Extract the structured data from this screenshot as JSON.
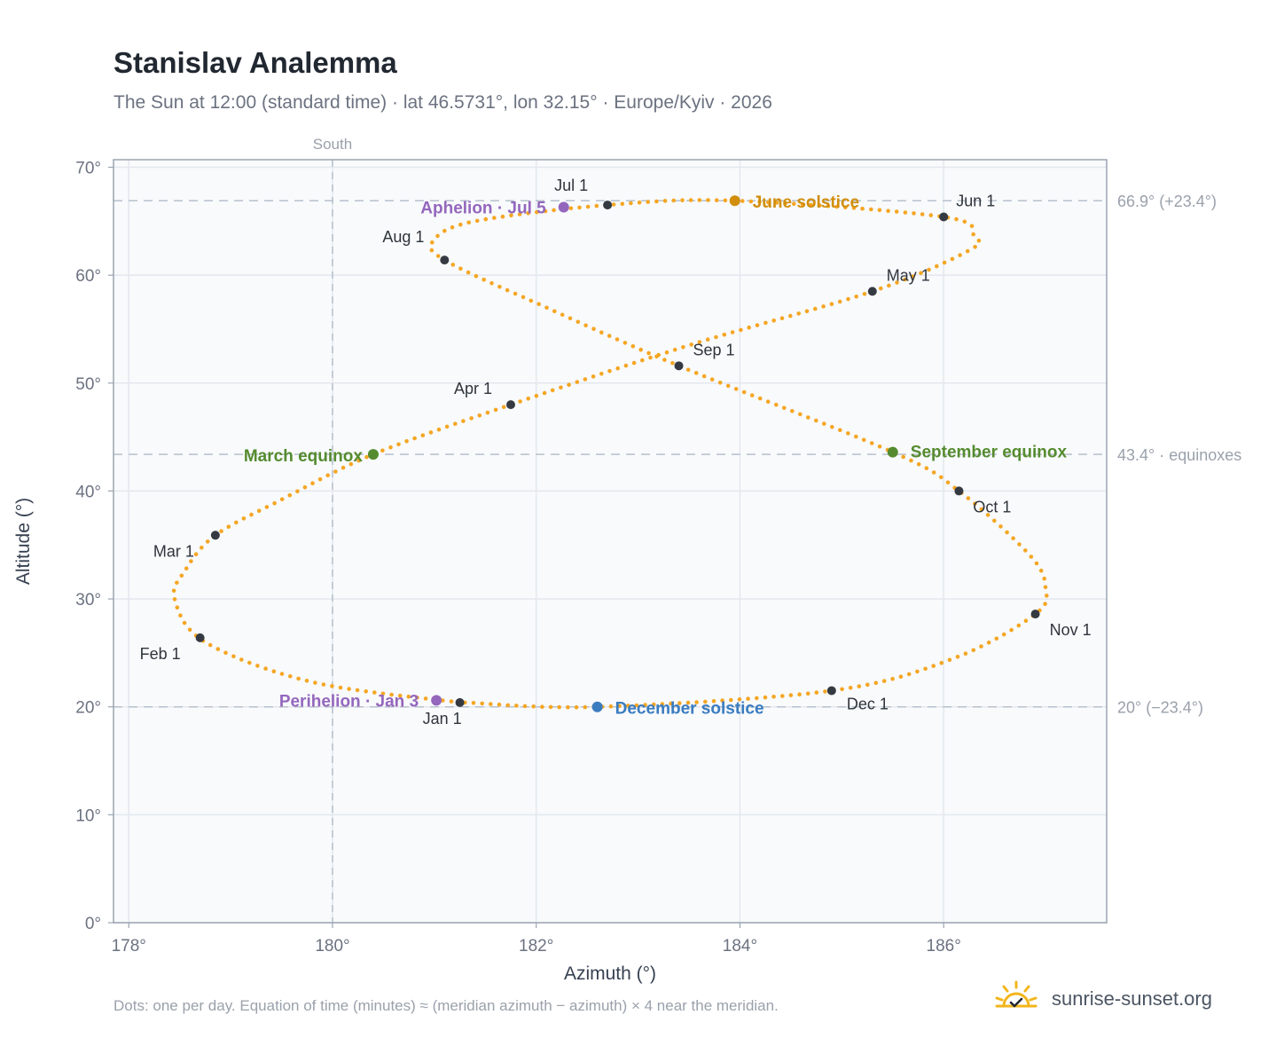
{
  "title": "Stanislav Analemma",
  "subtitle": "The Sun at 12:00 (standard time) · lat 46.5731°, lon 32.15° · Europe/Kyiv · 2026",
  "footnote": "Dots: one per day. Equation of time (minutes) ≈ (meridian azimuth − azimuth) × 4 near the meridian.",
  "brand": {
    "name": "sunrise-sunset.org",
    "icon": "sun-logo-icon",
    "color": "#f2b61c"
  },
  "colors": {
    "analemma": "#f5a623",
    "month": "#353a42",
    "solstice_june": "#d18e0c",
    "equinox": "#558b2f",
    "solstice_december": "#3a7cc0",
    "apsis": "#9467bd",
    "reference": "#b7c1cc",
    "plot_bg": "#f8fafc",
    "frame": "#9aa5b1"
  },
  "chart_data": {
    "type": "scatter",
    "title": "Stanislav Analemma",
    "xlabel": "Azimuth (°)",
    "ylabel": "Altitude (°)",
    "xlim": [
      177.85,
      187.6
    ],
    "ylim": [
      0,
      70.7
    ],
    "xticks": [
      178,
      180,
      182,
      184,
      186
    ],
    "yticks": [
      0,
      10,
      20,
      30,
      40,
      50,
      60,
      70
    ],
    "xtick_labels": [
      "178°",
      "180°",
      "182°",
      "184°",
      "186°"
    ],
    "ytick_labels": [
      "0°",
      "10°",
      "20°",
      "30°",
      "40°",
      "50°",
      "60°",
      "70°"
    ],
    "grid": true,
    "meridian": {
      "azimuth": 180,
      "label": "South"
    },
    "reference_lines": [
      {
        "altitude": 66.9,
        "label": "66.9° (+23.4°)"
      },
      {
        "altitude": 43.4,
        "label": "43.4° · equinoxes"
      },
      {
        "altitude": 20,
        "label": "20° (−23.4°)"
      }
    ],
    "months": [
      {
        "label": "Jan 1",
        "azimuth": 181.25,
        "altitude": 20.4
      },
      {
        "label": "Feb 1",
        "azimuth": 178.7,
        "altitude": 26.4
      },
      {
        "label": "Mar 1",
        "azimuth": 178.85,
        "altitude": 35.9
      },
      {
        "label": "Apr 1",
        "azimuth": 181.75,
        "altitude": 48.0
      },
      {
        "label": "May 1",
        "azimuth": 185.3,
        "altitude": 58.5
      },
      {
        "label": "Jun 1",
        "azimuth": 186.0,
        "altitude": 65.4
      },
      {
        "label": "Jul 1",
        "azimuth": 182.7,
        "altitude": 66.5
      },
      {
        "label": "Aug 1",
        "azimuth": 181.1,
        "altitude": 61.4
      },
      {
        "label": "Sep 1",
        "azimuth": 183.4,
        "altitude": 51.6
      },
      {
        "label": "Oct 1",
        "azimuth": 186.15,
        "altitude": 40.0
      },
      {
        "label": "Nov 1",
        "azimuth": 186.9,
        "altitude": 28.6
      },
      {
        "label": "Dec 1",
        "azimuth": 184.9,
        "altitude": 21.5
      }
    ],
    "events": [
      {
        "label": "March equinox",
        "azimuth": 180.4,
        "altitude": 43.4,
        "kind": "equinox"
      },
      {
        "label": "June solstice",
        "azimuth": 183.95,
        "altitude": 66.9,
        "kind": "solstice_june"
      },
      {
        "label": "September equinox",
        "azimuth": 185.5,
        "altitude": 43.6,
        "kind": "equinox"
      },
      {
        "label": "December solstice",
        "azimuth": 182.6,
        "altitude": 20.0,
        "kind": "solstice_december"
      },
      {
        "label": "Perihelion · Jan 3",
        "azimuth": 181.02,
        "altitude": 20.6,
        "kind": "apsis"
      },
      {
        "label": "Aphelion · Jul 5",
        "azimuth": 182.27,
        "altitude": 66.3,
        "kind": "apsis"
      }
    ],
    "analemma_path": [
      {
        "date": "Jan 1",
        "azimuth": 181.25,
        "altitude": 20.4
      },
      {
        "date": "Jan 16",
        "azimuth": 179.8,
        "altitude": 22.3
      },
      {
        "date": "Jan 31",
        "azimuth": 178.75,
        "altitude": 26.0
      },
      {
        "date": "Feb 12",
        "azimuth": 178.45,
        "altitude": 30.0
      },
      {
        "date": "Feb 20",
        "azimuth": 178.55,
        "altitude": 32.6
      },
      {
        "date": "Mar 1",
        "azimuth": 178.85,
        "altitude": 35.9
      },
      {
        "date": "Mar 10",
        "azimuth": 179.5,
        "altitude": 39.2
      },
      {
        "date": "Mar 20",
        "azimuth": 180.4,
        "altitude": 43.4
      },
      {
        "date": "Apr 1",
        "azimuth": 181.75,
        "altitude": 48.0
      },
      {
        "date": "Apr 15",
        "azimuth": 183.5,
        "altitude": 53.5
      },
      {
        "date": "May 1",
        "azimuth": 185.3,
        "altitude": 58.5
      },
      {
        "date": "May 15",
        "azimuth": 186.25,
        "altitude": 62.3
      },
      {
        "date": "May 20",
        "azimuth": 186.3,
        "altitude": 63.6
      },
      {
        "date": "Jun 1",
        "azimuth": 186.0,
        "altitude": 65.4
      },
      {
        "date": "Jun 21",
        "azimuth": 183.95,
        "altitude": 66.9
      },
      {
        "date": "Jul 1",
        "azimuth": 182.7,
        "altitude": 66.5
      },
      {
        "date": "Jul 15",
        "azimuth": 181.4,
        "altitude": 65.0
      },
      {
        "date": "Jul 24",
        "azimuth": 181.0,
        "altitude": 63.3
      },
      {
        "date": "Aug 1",
        "azimuth": 181.1,
        "altitude": 61.4
      },
      {
        "date": "Aug 15",
        "azimuth": 182.1,
        "altitude": 57.0
      },
      {
        "date": "Sep 1",
        "azimuth": 183.4,
        "altitude": 51.6
      },
      {
        "date": "Sep 22",
        "azimuth": 185.5,
        "altitude": 43.6
      },
      {
        "date": "Oct 1",
        "azimuth": 186.15,
        "altitude": 40.0
      },
      {
        "date": "Oct 15",
        "azimuth": 186.85,
        "altitude": 34.0
      },
      {
        "date": "Oct 22",
        "azimuth": 187.0,
        "altitude": 31.0
      },
      {
        "date": "Nov 1",
        "azimuth": 186.9,
        "altitude": 28.6
      },
      {
        "date": "Nov 15",
        "azimuth": 186.1,
        "altitude": 24.5
      },
      {
        "date": "Dec 1",
        "azimuth": 184.9,
        "altitude": 21.5
      },
      {
        "date": "Dec 21",
        "azimuth": 182.6,
        "altitude": 20.0
      },
      {
        "date": "Dec 31",
        "azimuth": 181.3,
        "altitude": 20.4
      }
    ]
  }
}
